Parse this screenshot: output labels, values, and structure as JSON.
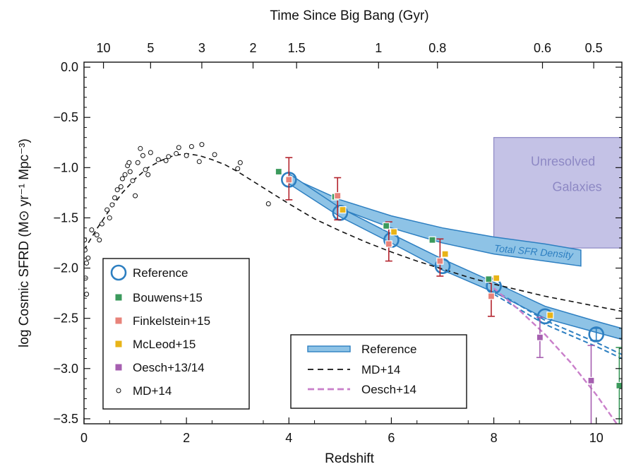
{
  "chart_data": {
    "type": "scatter",
    "title": "",
    "xlabel": "Redshift",
    "ylabel": "log Cosmic SFRD (M⊙ yr⁻¹ Mpc⁻³)",
    "top_axis_label": "Time Since Big Bang (Gyr)",
    "xlim": [
      0,
      10.5
    ],
    "ylim": [
      -3.55,
      0.05
    ],
    "grid": false,
    "x_ticks": [
      "0",
      "2",
      "4",
      "6",
      "8",
      "10"
    ],
    "x_tick_values": [
      0,
      2,
      4,
      6,
      8,
      10
    ],
    "y_ticks": [
      "0.0",
      "−0.5",
      "−1.0",
      "−1.5",
      "−2.0",
      "−2.5",
      "−3.0",
      "−3.5"
    ],
    "y_tick_values": [
      0,
      -0.5,
      -1,
      -1.5,
      -2,
      -2.5,
      -3,
      -3.5
    ],
    "top_ticks": [
      {
        "label": "10",
        "z": 0.38
      },
      {
        "label": "5",
        "z": 1.3
      },
      {
        "label": "3",
        "z": 2.3
      },
      {
        "label": "2",
        "z": 3.3
      },
      {
        "label": "1.5",
        "z": 4.15
      },
      {
        "label": "1",
        "z": 5.75
      },
      {
        "label": "0.8",
        "z": 6.9
      },
      {
        "label": "0.6",
        "z": 8.95
      },
      {
        "label": "0.5",
        "z": 9.95
      }
    ],
    "colors": {
      "reference": "#2d7fc1",
      "band_fill": "#8ec3e6",
      "bouwens": "#3b9a5c",
      "finkelstein": "#e8837a",
      "finkelstein_err": "#b3232d",
      "mcleod": "#e8b418",
      "oesch": "#a65fb0",
      "oesch_line": "#c97fca",
      "md14_line": "#111111",
      "unresolved_fill": "#c4c2e6",
      "unresolved_edge": "#8d88c4",
      "unresolved_text": "#8d88c4"
    },
    "reference_points": [
      {
        "z": 4.0,
        "y": -1.12
      },
      {
        "z": 5.0,
        "y": -1.45
      },
      {
        "z": 6.0,
        "y": -1.72
      },
      {
        "z": 7.0,
        "y": -1.98
      },
      {
        "z": 8.0,
        "y": -2.18
      },
      {
        "z": 9.0,
        "y": -2.48
      },
      {
        "z": 10.0,
        "y": -2.66,
        "err": 0.06
      }
    ],
    "bouwens15": [
      {
        "z": 3.8,
        "y": -1.04
      },
      {
        "z": 4.9,
        "y": -1.29
      },
      {
        "z": 5.9,
        "y": -1.58
      },
      {
        "z": 6.8,
        "y": -1.72
      },
      {
        "z": 7.9,
        "y": -2.11
      },
      {
        "z": 10.45,
        "y": -3.17,
        "err_low": 0.4,
        "err_high": 0.38
      }
    ],
    "finkelstein15": [
      {
        "z": 4.0,
        "y": -1.12,
        "err_low": 0.2,
        "err_high": 0.22
      },
      {
        "z": 4.95,
        "y": -1.28,
        "err_low": 0.24,
        "err_high": 0.18
      },
      {
        "z": 5.95,
        "y": -1.76,
        "err_low": 0.17,
        "err_high": 0.22
      },
      {
        "z": 6.95,
        "y": -1.93,
        "err_low": 0.15,
        "err_high": 0.22
      },
      {
        "z": 7.95,
        "y": -2.28,
        "err_low": 0.2,
        "err_high": 0.18
      }
    ],
    "mcleod15": [
      {
        "z": 5.05,
        "y": -1.42
      },
      {
        "z": 6.05,
        "y": -1.64
      },
      {
        "z": 7.05,
        "y": -1.86
      },
      {
        "z": 8.05,
        "y": -2.1
      },
      {
        "z": 9.1,
        "y": -2.47
      }
    ],
    "oesch13_14": [
      {
        "z": 8.9,
        "y": -2.69,
        "err_low": 0.2,
        "err_high": 0.2
      },
      {
        "z": 9.9,
        "y": -3.12,
        "err_low": 0.45,
        "err_high": 0.35
      }
    ],
    "md14_points": [
      [
        0.01,
        -1.72
      ],
      [
        0.02,
        -1.82
      ],
      [
        0.03,
        -2.1
      ],
      [
        0.05,
        -2.26
      ],
      [
        0.05,
        -1.95
      ],
      [
        0.08,
        -1.9
      ],
      [
        0.15,
        -1.62
      ],
      [
        0.25,
        -1.67
      ],
      [
        0.3,
        -1.72
      ],
      [
        0.35,
        -1.56
      ],
      [
        0.45,
        -1.42
      ],
      [
        0.5,
        -1.5
      ],
      [
        0.55,
        -1.37
      ],
      [
        0.6,
        -1.3
      ],
      [
        0.65,
        -1.22
      ],
      [
        0.72,
        -1.19
      ],
      [
        0.75,
        -1.11
      ],
      [
        0.8,
        -1.07
      ],
      [
        0.85,
        -0.98
      ],
      [
        0.88,
        -0.95
      ],
      [
        0.9,
        -1.04
      ],
      [
        0.95,
        -1.13
      ],
      [
        1.0,
        -1.28
      ],
      [
        1.05,
        -0.95
      ],
      [
        1.1,
        -0.81
      ],
      [
        1.15,
        -0.88
      ],
      [
        1.2,
        -1.02
      ],
      [
        1.25,
        -1.07
      ],
      [
        1.3,
        -0.85
      ],
      [
        1.45,
        -0.92
      ],
      [
        1.6,
        -0.93
      ],
      [
        1.65,
        -0.89
      ],
      [
        1.8,
        -0.86
      ],
      [
        1.85,
        -0.8
      ],
      [
        2.0,
        -0.88
      ],
      [
        2.1,
        -0.79
      ],
      [
        2.25,
        -0.94
      ],
      [
        2.3,
        -0.77
      ],
      [
        2.55,
        -0.87
      ],
      [
        3.0,
        -1.01
      ],
      [
        3.05,
        -0.95
      ],
      [
        3.6,
        -1.36
      ]
    ],
    "md14_curve": [
      [
        0,
        -1.82
      ],
      [
        0.25,
        -1.61
      ],
      [
        0.5,
        -1.42
      ],
      [
        0.75,
        -1.25
      ],
      [
        1.0,
        -1.11
      ],
      [
        1.25,
        -1.0
      ],
      [
        1.5,
        -0.93
      ],
      [
        1.75,
        -0.88
      ],
      [
        2.0,
        -0.86
      ],
      [
        2.25,
        -0.88
      ],
      [
        2.5,
        -0.92
      ],
      [
        2.75,
        -0.97
      ],
      [
        3.0,
        -1.04
      ],
      [
        3.5,
        -1.2
      ],
      [
        4.0,
        -1.36
      ],
      [
        4.5,
        -1.51
      ],
      [
        5.0,
        -1.63
      ],
      [
        5.5,
        -1.74
      ],
      [
        6.0,
        -1.84
      ],
      [
        6.5,
        -1.93
      ],
      [
        7.0,
        -2.01
      ],
      [
        7.5,
        -2.09
      ],
      [
        8.0,
        -2.16
      ],
      [
        8.5,
        -2.22
      ],
      [
        9.0,
        -2.28
      ],
      [
        9.5,
        -2.33
      ],
      [
        10.0,
        -2.38
      ],
      [
        10.5,
        -2.43
      ]
    ],
    "reference_band": {
      "upper": [
        [
          4.0,
          -1.06
        ],
        [
          5.0,
          -1.4
        ],
        [
          6.0,
          -1.66
        ],
        [
          7.0,
          -1.91
        ],
        [
          8.0,
          -2.14
        ],
        [
          9.0,
          -2.38
        ],
        [
          10.0,
          -2.53
        ],
        [
          10.5,
          -2.6
        ]
      ],
      "lower": [
        [
          4.0,
          -1.16
        ],
        [
          5.0,
          -1.49
        ],
        [
          6.0,
          -1.75
        ],
        [
          7.0,
          -2.02
        ],
        [
          8.0,
          -2.24
        ],
        [
          9.0,
          -2.5
        ],
        [
          10.0,
          -2.64
        ],
        [
          10.5,
          -2.71
        ]
      ]
    },
    "reference_dashed": {
      "upper": [
        [
          8.0,
          -2.22
        ],
        [
          9.0,
          -2.52
        ],
        [
          10.0,
          -2.74
        ],
        [
          10.5,
          -2.86
        ]
      ],
      "lower": [
        [
          8.0,
          -2.26
        ],
        [
          9.0,
          -2.56
        ],
        [
          10.0,
          -2.78
        ],
        [
          10.5,
          -2.9
        ]
      ]
    },
    "total_sfr_band": {
      "label": "Total SFR Density",
      "upper": [
        [
          4.0,
          -1.09
        ],
        [
          5.0,
          -1.32
        ],
        [
          6.0,
          -1.48
        ],
        [
          7.0,
          -1.6
        ],
        [
          8.0,
          -1.69
        ],
        [
          9.0,
          -1.76
        ],
        [
          9.7,
          -1.82
        ]
      ],
      "lower": [
        [
          4.0,
          -1.14
        ],
        [
          5.0,
          -1.41
        ],
        [
          6.0,
          -1.6
        ],
        [
          7.0,
          -1.75
        ],
        [
          8.0,
          -1.86
        ],
        [
          9.0,
          -1.93
        ],
        [
          9.7,
          -1.98
        ]
      ]
    },
    "oesch14_curve": [
      [
        8.0,
        -2.2
      ],
      [
        8.5,
        -2.42
      ],
      [
        9.0,
        -2.66
      ],
      [
        9.5,
        -2.94
      ],
      [
        10.0,
        -3.26
      ],
      [
        10.4,
        -3.55
      ]
    ],
    "unresolved_region": {
      "label_line1": "Unresolved",
      "label_line2": "Galaxies",
      "z_min": 8.0,
      "z_max": 10.5,
      "y_min": -1.8,
      "y_max": -0.7
    },
    "legend_markers": {
      "title": "",
      "entries": [
        {
          "key": "reference",
          "label": "Reference"
        },
        {
          "key": "bouwens",
          "label": "Bouwens+15"
        },
        {
          "key": "finkelstein",
          "label": "Finkelstein+15"
        },
        {
          "key": "mcleod",
          "label": "McLeod+15"
        },
        {
          "key": "oesch",
          "label": "Oesch+13/14"
        },
        {
          "key": "md14",
          "label": "MD+14"
        }
      ]
    },
    "legend_lines": {
      "entries": [
        {
          "key": "reference_band",
          "label": "Reference"
        },
        {
          "key": "md14_line",
          "label": "MD+14"
        },
        {
          "key": "oesch_line",
          "label": "Oesch+14"
        }
      ]
    }
  }
}
